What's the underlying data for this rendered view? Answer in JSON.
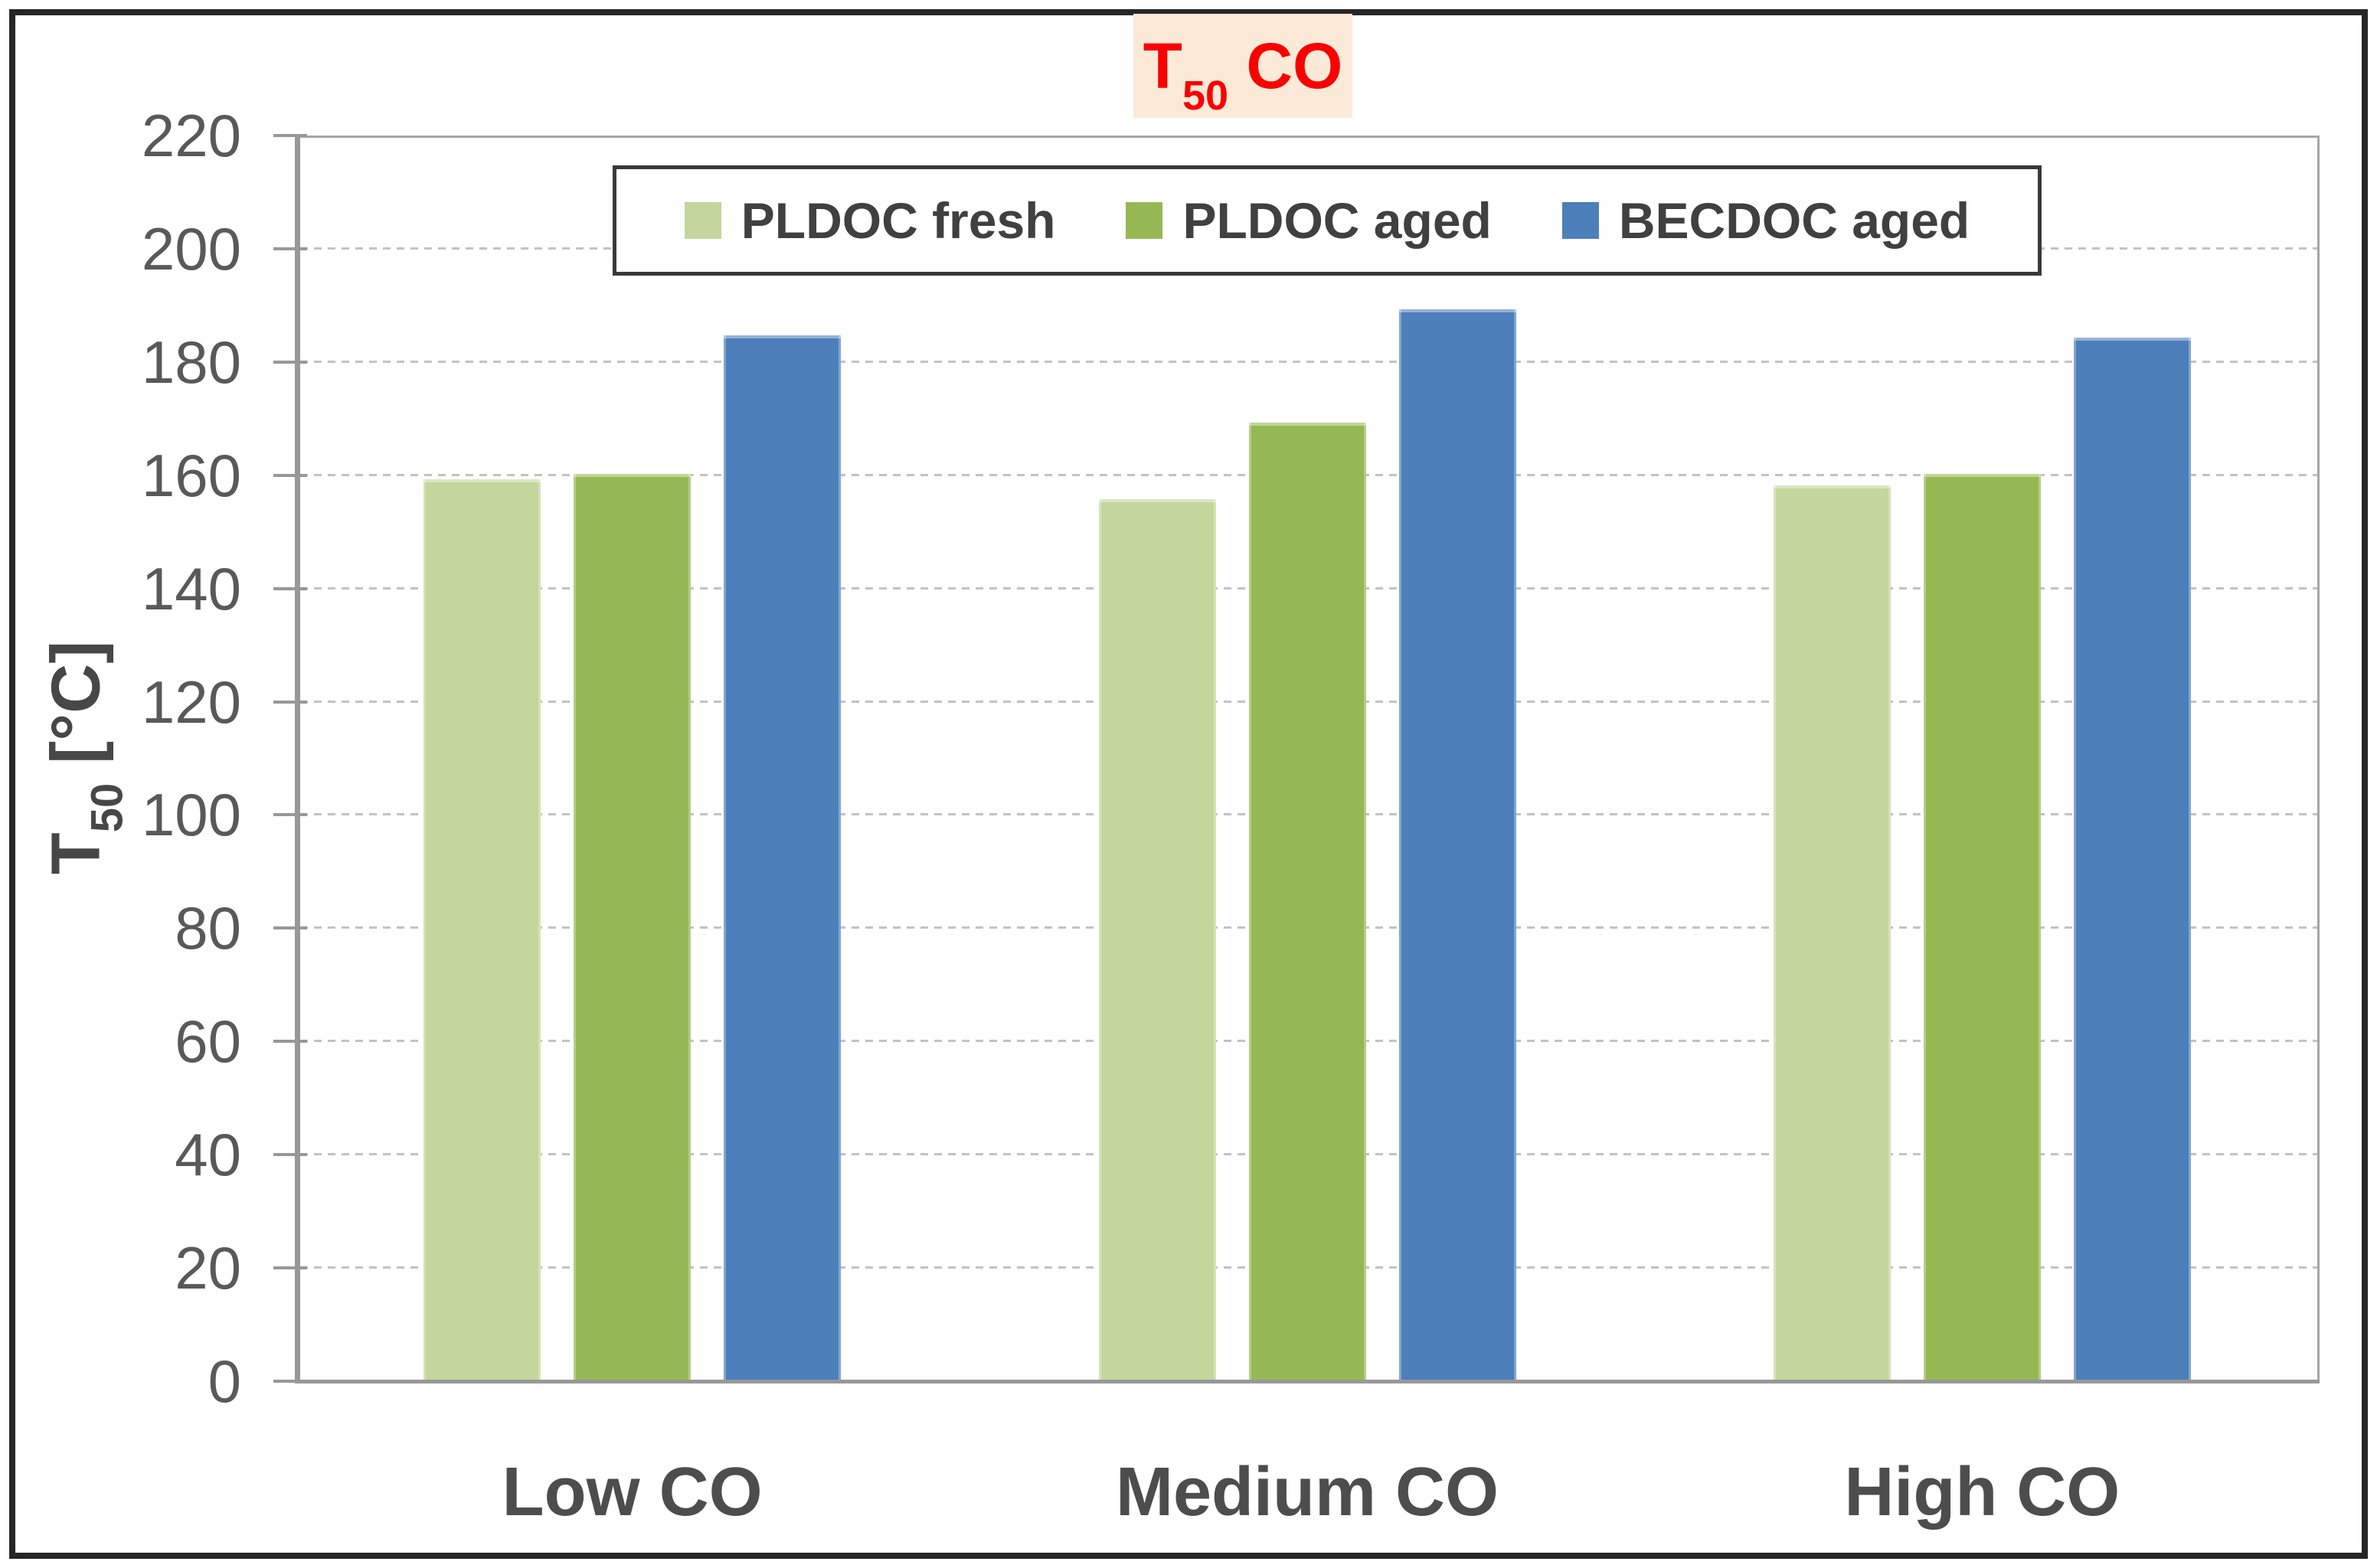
{
  "figure": {
    "title": {
      "base": "T",
      "sub": "50",
      "rest": " CO"
    },
    "y_axis_title": {
      "base": "T",
      "sub": "50",
      "rest": " [°C]"
    }
  },
  "colors": {
    "title_text": "#fb0000",
    "title_bg": "#fcead9",
    "axis_tick_text": "#595959",
    "category_text": "#4d4d4d",
    "legend_text": "#404040",
    "gridline": "#c3c3c3",
    "axis_line": "#989898",
    "frame_border": "#262626"
  },
  "chart_data": {
    "type": "bar",
    "title": "T50 CO",
    "categories": [
      "Low CO",
      "Medium CO",
      "High CO"
    ],
    "series": [
      {
        "name": "PLDOC fresh",
        "color": "#c4d69b",
        "values": [
          159,
          155.5,
          158
        ]
      },
      {
        "name": "PLDOC aged",
        "color": "#96b854",
        "values": [
          160,
          169,
          160
        ]
      },
      {
        "name": "BECDOC aged",
        "color": "#4d7fba",
        "values": [
          184.5,
          189,
          184
        ]
      }
    ],
    "xlabel": "",
    "ylabel": "T50 [°C]",
    "ylim": [
      0,
      220
    ],
    "yticks": [
      0,
      20,
      40,
      60,
      80,
      100,
      120,
      140,
      160,
      180,
      200,
      220
    ],
    "grid": "horizontal-dashed",
    "legend_position": "top-center"
  }
}
